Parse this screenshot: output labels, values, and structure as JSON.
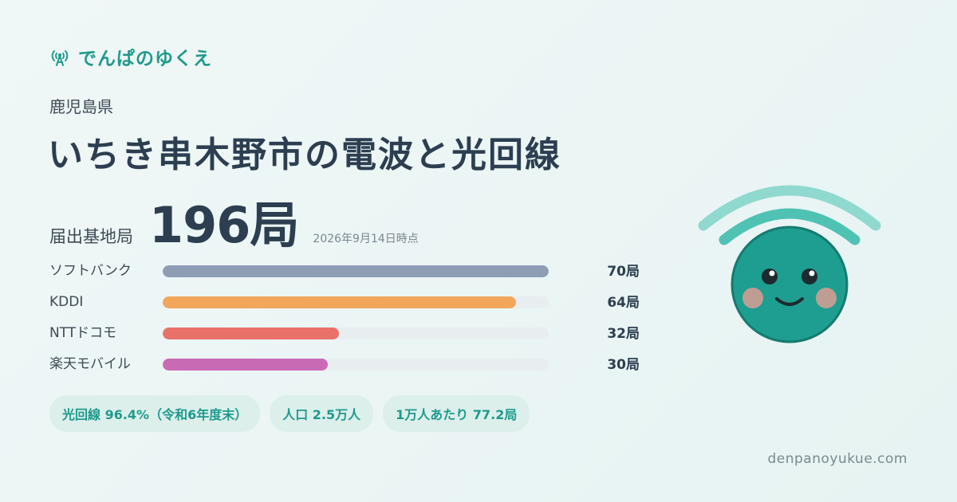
{
  "brand": {
    "name": "でんぱのゆくえ",
    "icon": "antenna-icon"
  },
  "prefecture": "鹿児島県",
  "title": "いちき串木野市の電波と光回線",
  "total": {
    "label": "届出基地局",
    "value": "196局",
    "date": "2026年9月14日時点"
  },
  "carriers": [
    {
      "name": "ソフトバンク",
      "count": 70,
      "count_label": "70局",
      "color": "#8e9db4"
    },
    {
      "name": "KDDI",
      "count": 64,
      "count_label": "64局",
      "color": "#f2a65a"
    },
    {
      "name": "NTTドコモ",
      "count": 32,
      "count_label": "32局",
      "color": "#e8716a"
    },
    {
      "name": "楽天モバイル",
      "count": 30,
      "count_label": "30局",
      "color": "#c96bb4"
    }
  ],
  "chips": {
    "fiber": "光回線 96.4%（令和6年度末）",
    "population": "人口 2.5万人",
    "per_10k": "1万人あたり 77.2局"
  },
  "site": "denpanoyukue.com",
  "colors": {
    "accent": "#1f9a8c",
    "mascot_body": "#1e9e90",
    "mascot_waves": "#7fd3c8"
  },
  "mascot": "wifi-face-mascot"
}
